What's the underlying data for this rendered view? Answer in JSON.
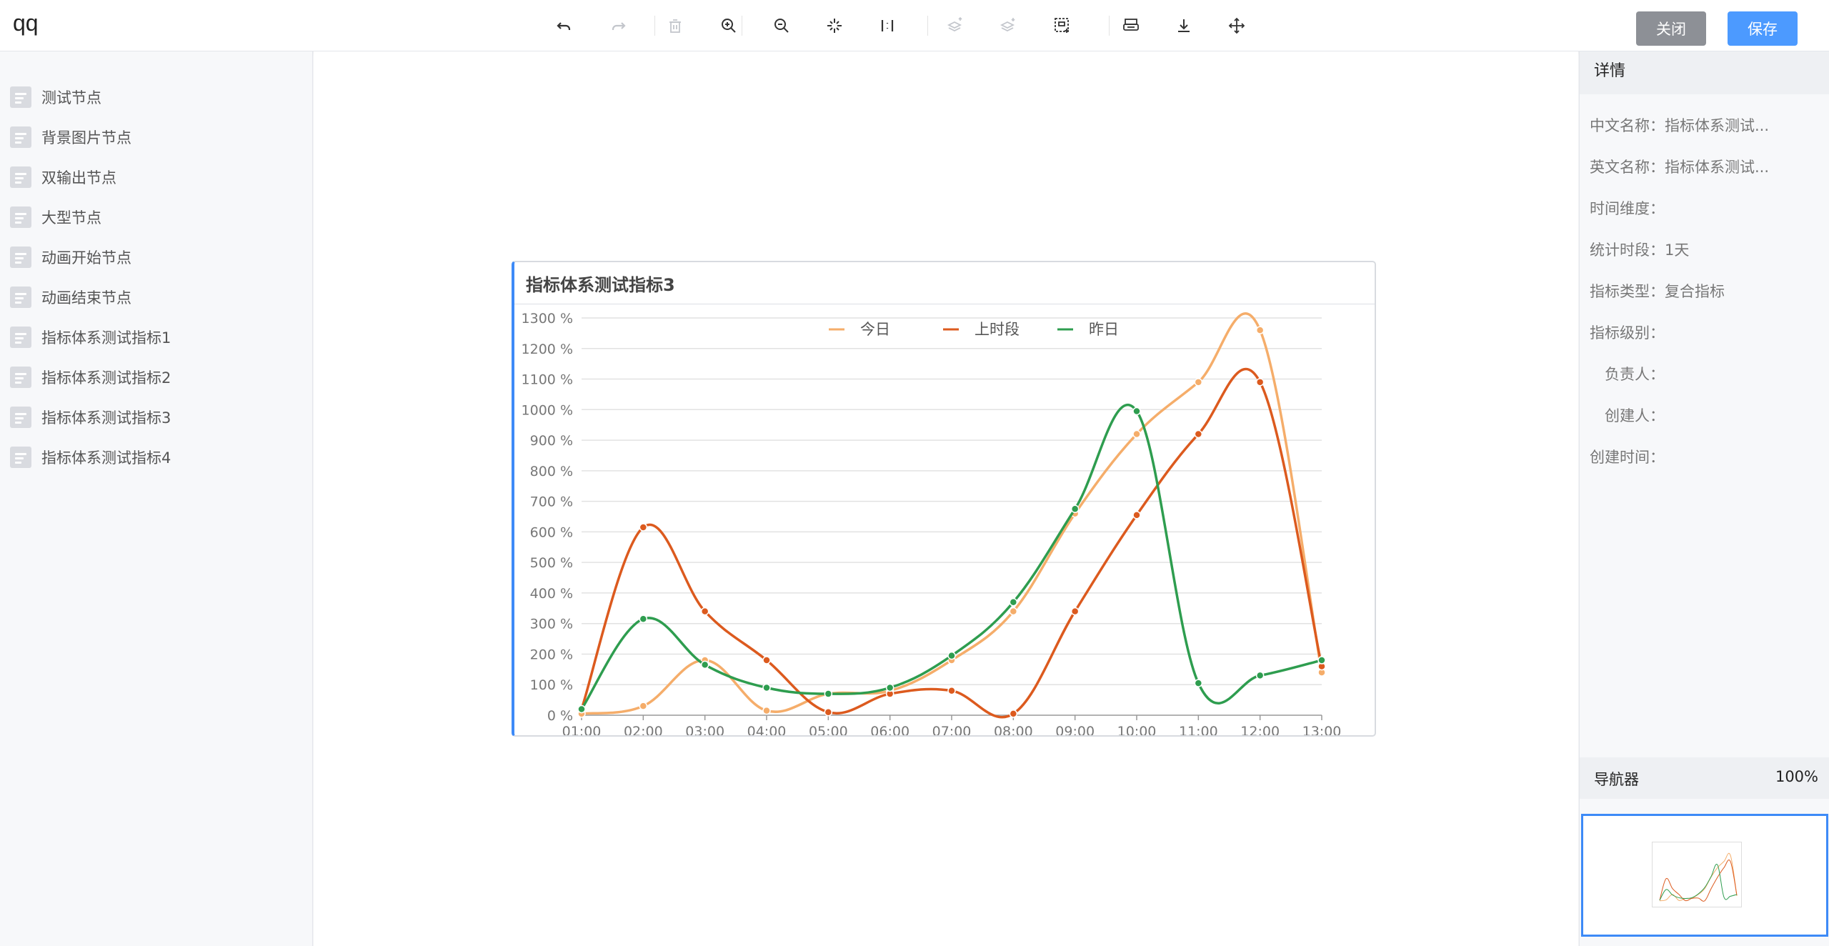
{
  "app": {
    "title": "qq"
  },
  "toolbar": {
    "buttons": [
      {
        "icon": "undo-icon",
        "enabled": true
      },
      {
        "icon": "redo-icon",
        "enabled": false
      },
      {
        "icon": "delete-icon",
        "enabled": false
      },
      {
        "icon": "zoom-in-icon",
        "enabled": true
      },
      {
        "icon": "zoom-out-icon",
        "enabled": true
      },
      {
        "icon": "fit-view-icon",
        "enabled": true
      },
      {
        "icon": "actual-size-icon",
        "enabled": true
      },
      {
        "icon": "move-up-layer-icon",
        "enabled": false
      },
      {
        "icon": "move-down-layer-icon",
        "enabled": false
      },
      {
        "icon": "multi-select-icon",
        "enabled": true
      },
      {
        "icon": "print-icon",
        "enabled": true
      },
      {
        "icon": "download-icon",
        "enabled": true
      },
      {
        "icon": "drag-move-icon",
        "enabled": true
      }
    ],
    "close_label": "关闭",
    "save_label": "保存"
  },
  "sidebar": {
    "items": [
      {
        "label": "测试节点"
      },
      {
        "label": "背景图片节点"
      },
      {
        "label": "双输出节点"
      },
      {
        "label": "大型节点"
      },
      {
        "label": "动画开始节点"
      },
      {
        "label": "动画结束节点"
      },
      {
        "label": "指标体系测试指标1"
      },
      {
        "label": "指标体系测试指标2"
      },
      {
        "label": "指标体系测试指标3"
      },
      {
        "label": "指标体系测试指标4"
      }
    ]
  },
  "card": {
    "title": "指标体系测试指标3"
  },
  "chart_data": {
    "type": "line",
    "title": "指标体系测试指标3",
    "x": [
      "01:00",
      "02:00",
      "03:00",
      "04:00",
      "05:00",
      "06:00",
      "07:00",
      "08:00",
      "09:00",
      "10:00",
      "11:00",
      "12:00",
      "13:00"
    ],
    "yticks": [
      "0 %",
      "100 %",
      "200 %",
      "300 %",
      "400 %",
      "500 %",
      "600 %",
      "700 %",
      "800 %",
      "900 %",
      "1000 %",
      "1100 %",
      "1200 %",
      "1300 %"
    ],
    "ylim": [
      0,
      1300
    ],
    "grid": true,
    "legend_position": "top-center",
    "smooth": true,
    "series": [
      {
        "name": "今日",
        "color": "#f5ad6a",
        "values": [
          5,
          30,
          180,
          15,
          70,
          80,
          180,
          340,
          660,
          920,
          1090,
          1260,
          140
        ]
      },
      {
        "name": "上时段",
        "color": "#dc5a1e",
        "values": [
          20,
          615,
          340,
          180,
          10,
          70,
          80,
          5,
          340,
          655,
          920,
          1090,
          160
        ]
      },
      {
        "name": "昨日",
        "color": "#2e9d4f",
        "values": [
          20,
          315,
          165,
          90,
          70,
          90,
          195,
          370,
          675,
          995,
          105,
          130,
          180
        ]
      }
    ]
  },
  "details": {
    "header": "详情",
    "rows": [
      {
        "label": "中文名称：",
        "value": "指标体系测试..."
      },
      {
        "label": "英文名称：",
        "value": "指标体系测试..."
      },
      {
        "label": "时间维度：",
        "value": ""
      },
      {
        "label": "统计时段：",
        "value": "1天"
      },
      {
        "label": "指标类型：",
        "value": "复合指标"
      },
      {
        "label": "指标级别：",
        "value": ""
      },
      {
        "label": "负责人：",
        "value": ""
      },
      {
        "label": "创建人：",
        "value": ""
      },
      {
        "label": "创建时间：",
        "value": ""
      }
    ]
  },
  "navigator": {
    "title": "导航器",
    "zoom": "100%"
  }
}
